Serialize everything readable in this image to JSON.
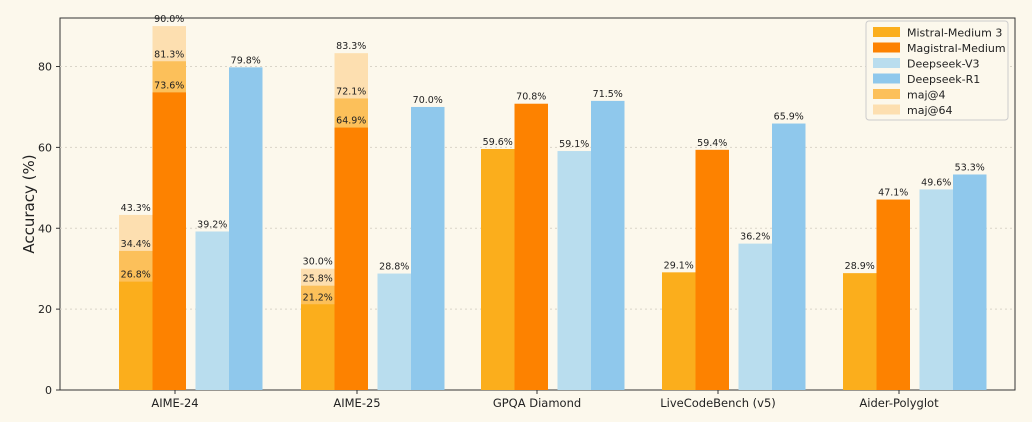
{
  "chart_data": {
    "type": "bar",
    "title": "",
    "xlabel": "",
    "ylabel": "Accuracy (%)",
    "ylim": [
      0,
      92
    ],
    "yticks": [
      0,
      20,
      40,
      60,
      80
    ],
    "grid": true,
    "legend_position": "top-right",
    "categories": [
      "AIME-24",
      "AIME-25",
      "GPQA Diamond",
      "LiveCodeBench (v5)",
      "Aider-Polyglot"
    ],
    "series": [
      {
        "name": "Mistral-Medium 3",
        "color": "#fbae1c",
        "values": [
          26.8,
          21.2,
          59.6,
          29.1,
          28.9
        ],
        "labels": [
          "26.8%",
          "21.2%",
          "59.6%",
          "29.1%",
          "28.9%"
        ]
      },
      {
        "name": "Magistral-Medium",
        "color": "#fd8200",
        "values": [
          73.6,
          64.9,
          70.8,
          59.4,
          47.1
        ],
        "labels": [
          "73.6%",
          "64.9%",
          "70.8%",
          "59.4%",
          "47.1%"
        ]
      },
      {
        "name": "Deepseek-V3",
        "color": "#b9ddee",
        "values": [
          39.2,
          28.8,
          59.1,
          36.2,
          49.6
        ],
        "labels": [
          "39.2%",
          "28.8%",
          "59.1%",
          "36.2%",
          "49.6%"
        ]
      },
      {
        "name": "Deepseek-R1",
        "color": "#8fc8ec",
        "values": [
          79.8,
          70.0,
          71.5,
          65.9,
          53.3
        ],
        "labels": [
          "79.8%",
          "70.0%",
          "71.5%",
          "65.9%",
          "53.3%"
        ]
      }
    ],
    "overlays": [
      {
        "name": "maj@4",
        "color": "#fcc05a",
        "series_index": [
          0,
          1
        ],
        "values": [
          [
            34.4,
            25.8,
            null,
            null,
            null
          ],
          [
            81.3,
            72.1,
            null,
            null,
            null
          ]
        ],
        "labels": [
          [
            "34.4%",
            "25.8%",
            null,
            null,
            null
          ],
          [
            "81.3%",
            "72.1%",
            null,
            null,
            null
          ]
        ]
      },
      {
        "name": "maj@64",
        "color": "#fddfb0",
        "series_index": [
          0,
          1
        ],
        "values": [
          [
            43.3,
            30.0,
            null,
            null,
            null
          ],
          [
            90.0,
            83.3,
            null,
            null,
            null
          ]
        ],
        "labels": [
          [
            "43.3%",
            "30.0%",
            null,
            null,
            null
          ],
          [
            "90.0%",
            "83.3%",
            null,
            null,
            null
          ]
        ]
      }
    ],
    "legend": [
      "Mistral-Medium 3",
      "Magistral-Medium",
      "Deepseek-V3",
      "Deepseek-R1",
      "maj@4",
      "maj@64"
    ]
  }
}
